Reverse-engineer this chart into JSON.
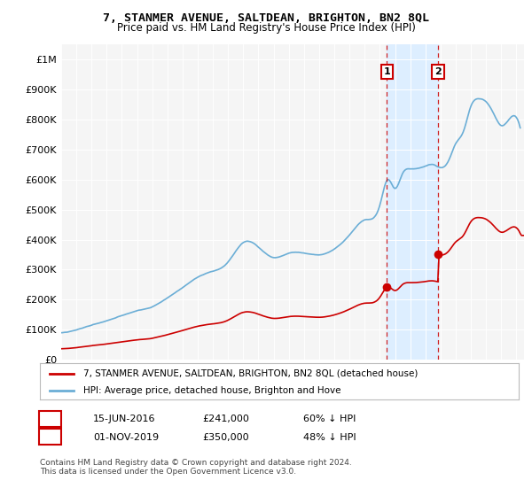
{
  "title": "7, STANMER AVENUE, SALTDEAN, BRIGHTON, BN2 8QL",
  "subtitle": "Price paid vs. HM Land Registry's House Price Index (HPI)",
  "hpi_color": "#6baed6",
  "price_color": "#cc0000",
  "vline_color": "#cc0000",
  "shade_color": "#ddeeff",
  "background_color": "#ffffff",
  "plot_bg_color": "#f5f5f5",
  "ylabel_ticks": [
    "£0",
    "£100K",
    "£200K",
    "£300K",
    "£400K",
    "£500K",
    "£600K",
    "£700K",
    "£800K",
    "£900K",
    "£1M"
  ],
  "ytick_values": [
    0,
    100000,
    200000,
    300000,
    400000,
    500000,
    600000,
    700000,
    800000,
    900000,
    1000000
  ],
  "ylim": [
    0,
    1050000
  ],
  "xlim_start": 1995.0,
  "xlim_end": 2025.5,
  "sale1_x": 2016.458,
  "sale1_y": 241000,
  "sale2_x": 2019.833,
  "sale2_y": 350000,
  "legend_entry1": "7, STANMER AVENUE, SALTDEAN, BRIGHTON, BN2 8QL (detached house)",
  "legend_entry2": "HPI: Average price, detached house, Brighton and Hove",
  "table_row1_num": "1",
  "table_row1_date": "15-JUN-2016",
  "table_row1_price": "£241,000",
  "table_row1_hpi": "60% ↓ HPI",
  "table_row2_num": "2",
  "table_row2_date": "01-NOV-2019",
  "table_row2_price": "£350,000",
  "table_row2_hpi": "48% ↓ HPI",
  "footnote": "Contains HM Land Registry data © Crown copyright and database right 2024.\nThis data is licensed under the Open Government Licence v3.0."
}
